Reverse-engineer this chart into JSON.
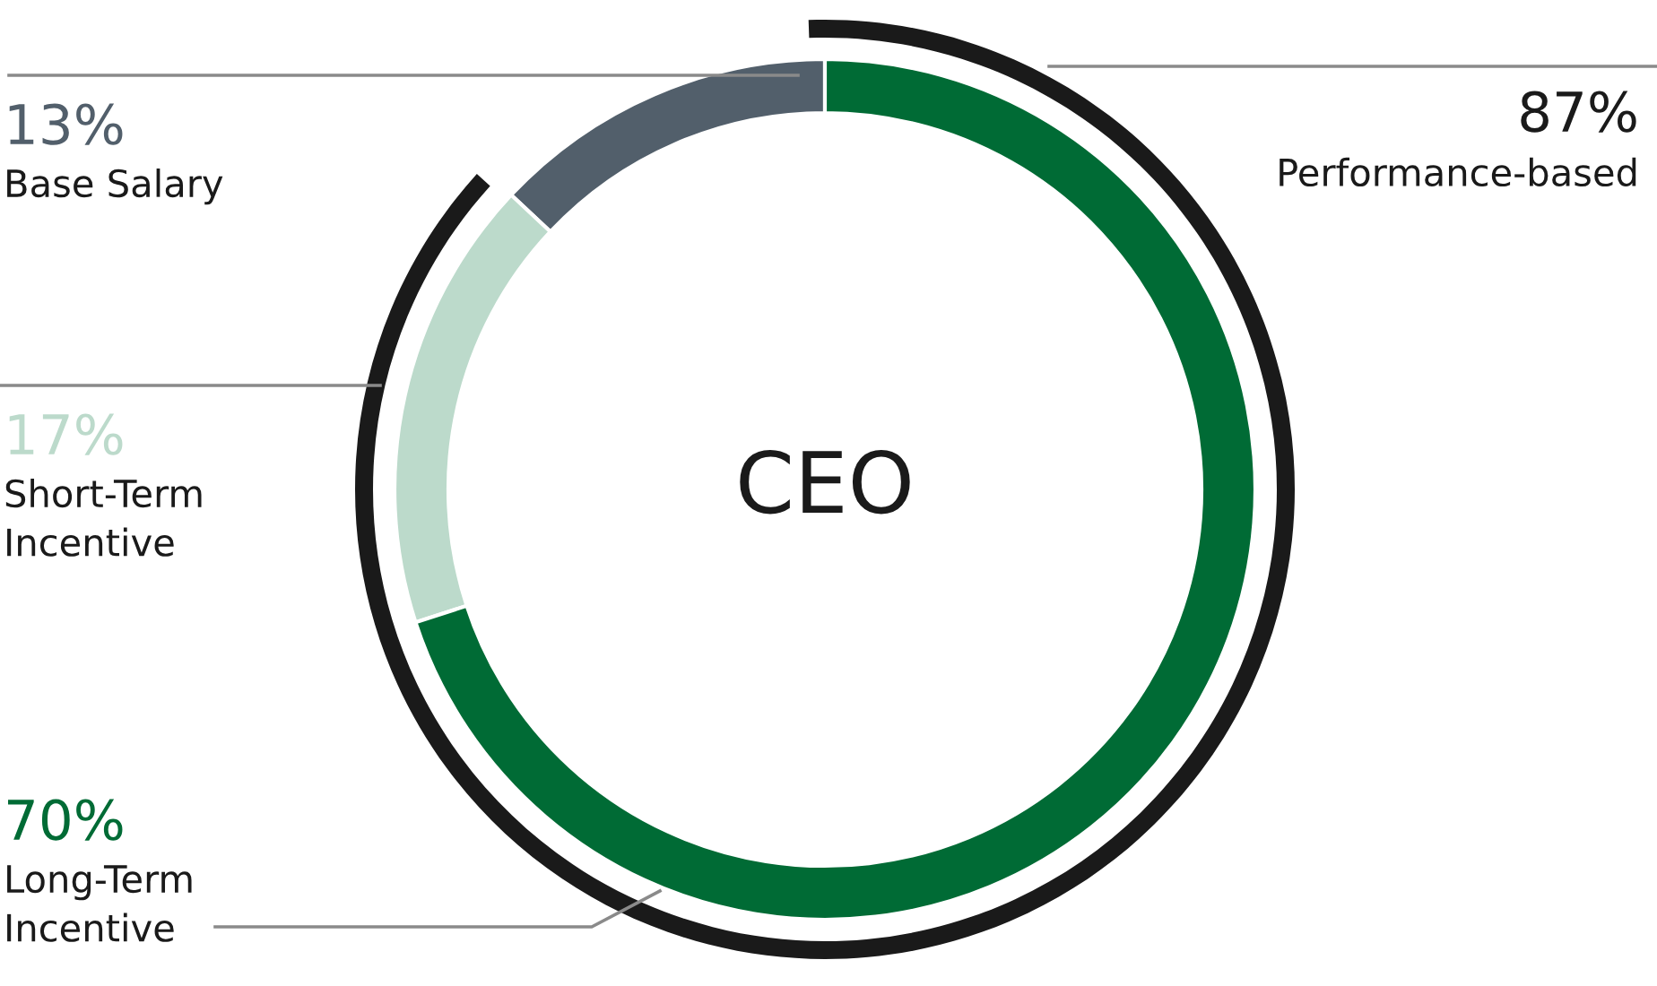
{
  "chart_data": {
    "type": "donut",
    "title": "CEO",
    "categories": [
      "Base Salary",
      "Short-Term Incentive",
      "Long-Term Incentive"
    ],
    "values": [
      13,
      17,
      70
    ],
    "colors": [
      "#525f6b",
      "#bcdacb",
      "#006b35"
    ],
    "value_labels": [
      "13%",
      "17%",
      "70%"
    ],
    "annotations": [
      "87%",
      "Performance-based"
    ]
  }
}
